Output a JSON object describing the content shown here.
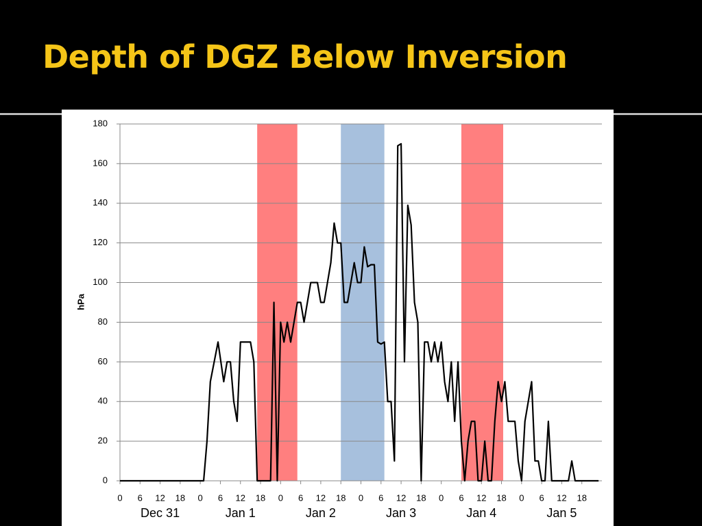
{
  "chart_data": {
    "type": "line",
    "title": "Depth of DGZ Below Inversion",
    "y_label": "hPa",
    "xlim": [
      0,
      144
    ],
    "ylim": [
      0,
      180
    ],
    "yticks": [
      0,
      20,
      40,
      60,
      80,
      100,
      120,
      140,
      160,
      180
    ],
    "xticks": [
      0,
      6,
      12,
      18,
      {
        "value": 24,
        "label": "0"
      },
      {
        "value": 30,
        "label": "6"
      },
      {
        "value": 36,
        "label": "12"
      },
      {
        "value": 42,
        "label": "18"
      },
      {
        "value": 48,
        "label": "0"
      },
      {
        "value": 54,
        "label": "6"
      },
      {
        "value": 60,
        "label": "12"
      },
      {
        "value": 66,
        "label": "18"
      },
      {
        "value": 72,
        "label": "0"
      },
      {
        "value": 78,
        "label": "6"
      },
      {
        "value": 84,
        "label": "12"
      },
      {
        "value": 90,
        "label": "18"
      },
      {
        "value": 96,
        "label": "0"
      },
      {
        "value": 102,
        "label": "6"
      },
      {
        "value": 108,
        "label": "12"
      },
      {
        "value": 114,
        "label": "18"
      },
      {
        "value": 120,
        "label": "0"
      },
      {
        "value": 126,
        "label": "6"
      },
      {
        "value": 132,
        "label": "12"
      },
      {
        "value": 138,
        "label": "18"
      }
    ],
    "day_labels": [
      "Dec 31",
      "Jan 1",
      "Jan 2",
      "Jan 3",
      "Jan 4",
      "Jan 5"
    ],
    "grid": true,
    "bands": [
      {
        "x": [
          41,
          53
        ],
        "color": "#ff7f7f"
      },
      {
        "x": [
          66,
          79
        ],
        "color": "#a7c0dd"
      },
      {
        "x": [
          102,
          114.5
        ],
        "color": "#ff7f7f"
      }
    ],
    "series": [
      {
        "color": "#000000",
        "x": [
          0,
          25,
          26,
          27,
          29.3,
          31,
          32,
          33,
          34,
          35,
          36,
          39,
          40,
          41,
          45,
          46,
          47,
          48,
          49,
          50,
          51,
          53,
          54,
          55,
          57,
          59,
          60,
          61,
          63,
          64,
          65,
          66,
          67,
          68,
          70,
          71,
          72,
          73,
          74,
          75,
          76,
          77,
          78,
          79,
          80,
          81,
          82,
          83,
          84,
          85,
          86,
          87,
          88,
          89,
          90,
          91,
          92,
          93,
          94,
          95,
          96,
          97,
          98,
          99,
          100,
          101,
          102,
          103,
          104,
          105,
          106,
          107,
          108,
          109,
          110,
          111,
          112,
          113,
          114,
          115,
          116,
          118,
          119,
          120,
          121,
          123,
          124,
          125,
          126,
          127,
          128,
          129,
          134,
          135,
          136,
          143
        ],
        "values": [
          0,
          0,
          20,
          50,
          70,
          50,
          60,
          60,
          40,
          30,
          70,
          70,
          60,
          0,
          0,
          90,
          0,
          80,
          70,
          80,
          70,
          90,
          90,
          80,
          100,
          100,
          90,
          90,
          110,
          130,
          120,
          120,
          90,
          90,
          110,
          100,
          100,
          118,
          108,
          109,
          109,
          70,
          69,
          70,
          40,
          40,
          10,
          169,
          170,
          60,
          139,
          129,
          90,
          80,
          0,
          70,
          70,
          60,
          70,
          60,
          70,
          50,
          40,
          60,
          30,
          60,
          20,
          0,
          20,
          30,
          30,
          0,
          0,
          20,
          0,
          0,
          30,
          50,
          40,
          50,
          30,
          30,
          10,
          0,
          30,
          50,
          10,
          10,
          0,
          0,
          30,
          0,
          0,
          10,
          0,
          0
        ]
      }
    ]
  }
}
